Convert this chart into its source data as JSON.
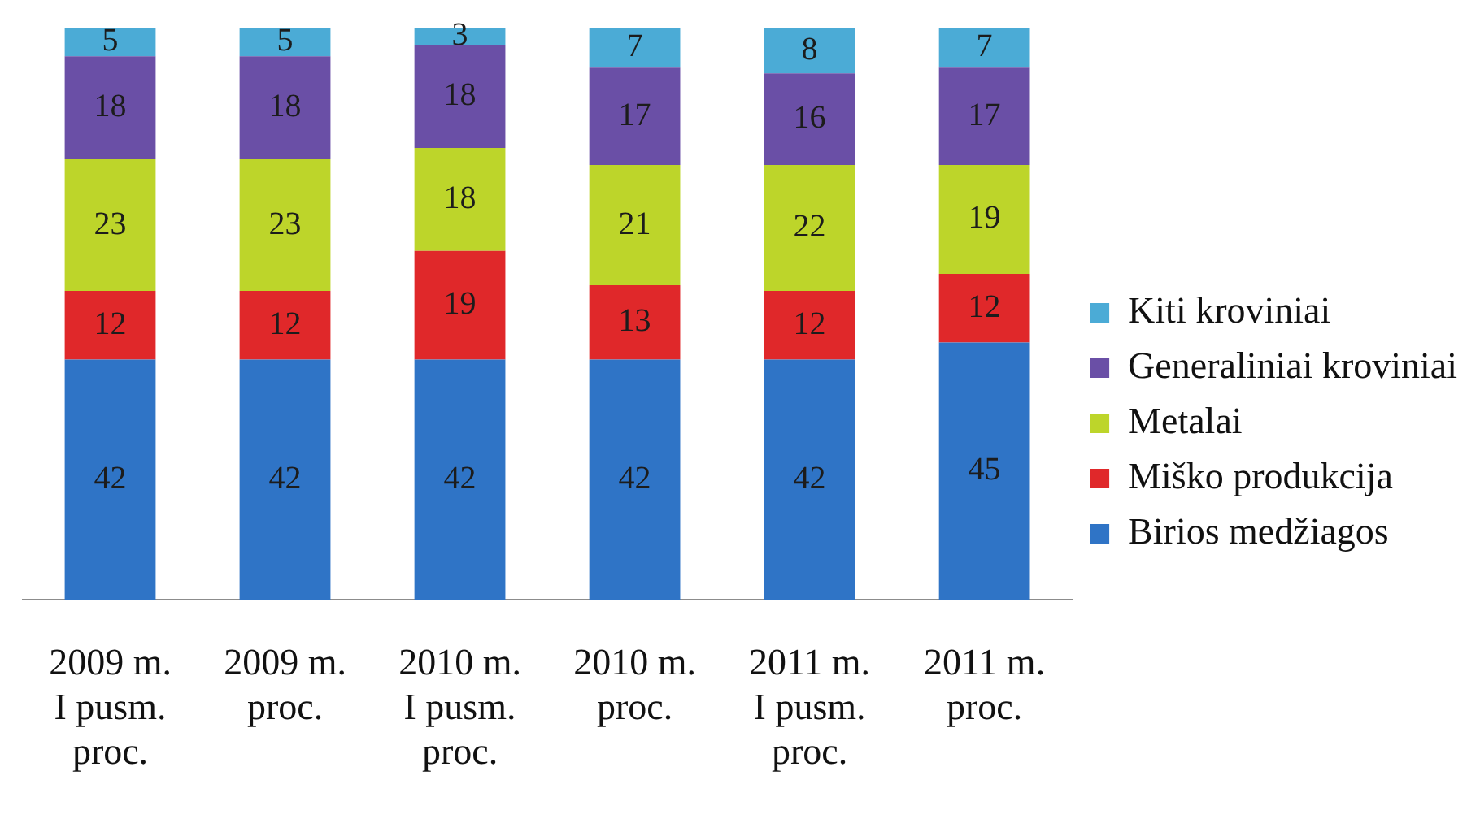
{
  "chart_data": {
    "type": "bar",
    "stacked": true,
    "categories": [
      "2009 m. I pusm. proc.",
      "2009 m. proc.",
      "2010 m. I pusm. proc.",
      "2010 m. proc.",
      "2011 m. I pusm. proc.",
      "2011 m. proc."
    ],
    "series": [
      {
        "name": "Birios medžiagos",
        "color": "#2f74c6",
        "values": [
          42,
          42,
          42,
          42,
          42,
          45
        ]
      },
      {
        "name": "Miško produkcija",
        "color": "#e0282a",
        "values": [
          12,
          12,
          19,
          13,
          12,
          12
        ]
      },
      {
        "name": "Metalai",
        "color": "#bdd52a",
        "values": [
          23,
          23,
          18,
          21,
          22,
          19
        ]
      },
      {
        "name": "Generaliniai kroviniai",
        "color": "#6a4fa6",
        "values": [
          18,
          18,
          18,
          17,
          16,
          17
        ]
      },
      {
        "name": "Kiti kroviniai",
        "color": "#4babd6",
        "values": [
          5,
          5,
          3,
          7,
          8,
          7
        ]
      }
    ],
    "data_labels": true,
    "legend": "right",
    "tick_labels": "x"
  }
}
